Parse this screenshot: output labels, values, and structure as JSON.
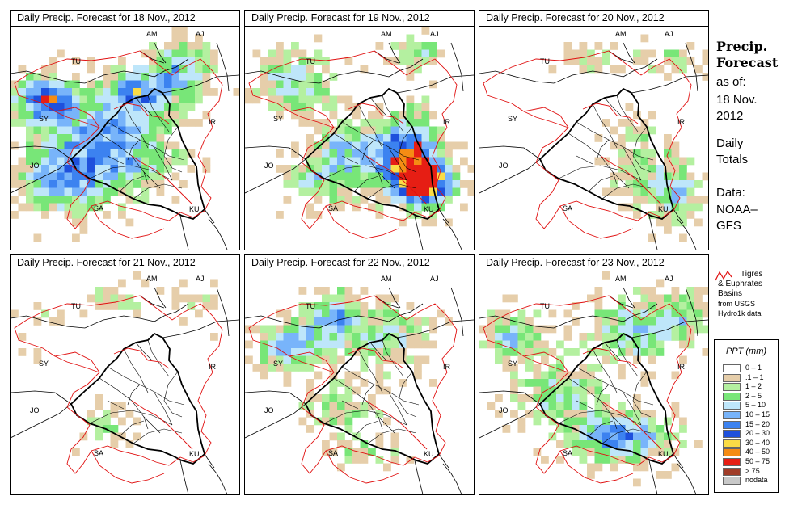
{
  "panels": [
    {
      "title": "Daily Precip. Forecast for  18 Nov., 2012",
      "seed": 11,
      "pattern": "d18"
    },
    {
      "title": "Daily Precip. Forecast for  19 Nov., 2012",
      "seed": 23,
      "pattern": "d19"
    },
    {
      "title": "Daily Precip. Forecast for  20 Nov., 2012",
      "seed": 37,
      "pattern": "d20"
    },
    {
      "title": "Daily Precip. Forecast for  21 Nov., 2012",
      "seed": 41,
      "pattern": "d21"
    },
    {
      "title": "Daily Precip. Forecast for  22 Nov., 2012",
      "seed": 53,
      "pattern": "d22"
    },
    {
      "title": "Daily Precip. Forecast for  23 Nov., 2012",
      "seed": 67,
      "pattern": "d23"
    }
  ],
  "country_labels": [
    "AM",
    "AJ",
    "TU",
    "SY",
    "IR",
    "JO",
    "SA",
    "KU"
  ],
  "sidebar": {
    "heading_line1": "Precip.",
    "heading_line2": "Forecast",
    "as_of": "as of:",
    "date_line1": "18 Nov.",
    "date_line2": "2012",
    "daily_line1": "Daily",
    "daily_line2": "Totals",
    "data_line1": "Data:",
    "data_line2": "NOAA–",
    "data_line3": "GFS"
  },
  "basin_note": {
    "line1": "Tigres",
    "line2": "& Euphrates",
    "line3": "Basins",
    "line4": "from USGS",
    "line5": "Hydro1k data"
  },
  "legend": {
    "title": "PPT (mm)",
    "items": [
      {
        "label": "0 – 1",
        "color": "#ffffff"
      },
      {
        "label": ".1 – 1",
        "color": "#e6ceaa"
      },
      {
        "label": "1 – 2",
        "color": "#b4f0a0"
      },
      {
        "label": "2 – 5",
        "color": "#78e678"
      },
      {
        "label": "5 – 10",
        "color": "#bee6fa"
      },
      {
        "label": "10 – 15",
        "color": "#78b4fa"
      },
      {
        "label": "15 – 20",
        "color": "#3c82f0"
      },
      {
        "label": "20 – 30",
        "color": "#1e50dc"
      },
      {
        "label": "30 – 40",
        "color": "#fadc46"
      },
      {
        "label": "40 – 50",
        "color": "#f58c14"
      },
      {
        "label": "50 – 75",
        "color": "#e61e14"
      },
      {
        "label": "> 75",
        "color": "#a03c28"
      },
      {
        "label": "nodata",
        "color": "#c8c8c8"
      }
    ]
  },
  "colors": {
    "basin_outline": "#e01010",
    "border": "#000000"
  }
}
